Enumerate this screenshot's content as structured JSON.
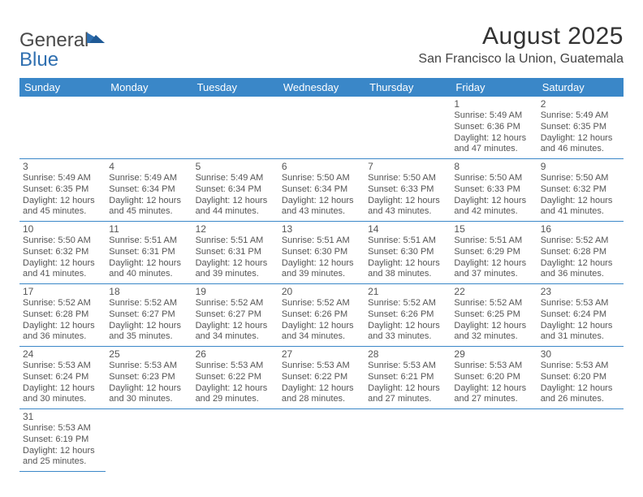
{
  "logo": {
    "text1": "General",
    "text2": "Blue"
  },
  "header": {
    "title": "August 2025",
    "location": "San Francisco la Union, Guatemala"
  },
  "colors": {
    "header_bg": "#3a87c8",
    "header_text": "#ffffff",
    "cell_border": "#3a87c8",
    "body_text": "#555555",
    "logo_accent": "#2f6fb0"
  },
  "days": [
    "Sunday",
    "Monday",
    "Tuesday",
    "Wednesday",
    "Thursday",
    "Friday",
    "Saturday"
  ],
  "weeks": [
    [
      null,
      null,
      null,
      null,
      null,
      {
        "n": "1",
        "sr": "Sunrise: 5:49 AM",
        "ss": "Sunset: 6:36 PM",
        "d1": "Daylight: 12 hours",
        "d2": "and 47 minutes."
      },
      {
        "n": "2",
        "sr": "Sunrise: 5:49 AM",
        "ss": "Sunset: 6:35 PM",
        "d1": "Daylight: 12 hours",
        "d2": "and 46 minutes."
      }
    ],
    [
      {
        "n": "3",
        "sr": "Sunrise: 5:49 AM",
        "ss": "Sunset: 6:35 PM",
        "d1": "Daylight: 12 hours",
        "d2": "and 45 minutes."
      },
      {
        "n": "4",
        "sr": "Sunrise: 5:49 AM",
        "ss": "Sunset: 6:34 PM",
        "d1": "Daylight: 12 hours",
        "d2": "and 45 minutes."
      },
      {
        "n": "5",
        "sr": "Sunrise: 5:49 AM",
        "ss": "Sunset: 6:34 PM",
        "d1": "Daylight: 12 hours",
        "d2": "and 44 minutes."
      },
      {
        "n": "6",
        "sr": "Sunrise: 5:50 AM",
        "ss": "Sunset: 6:34 PM",
        "d1": "Daylight: 12 hours",
        "d2": "and 43 minutes."
      },
      {
        "n": "7",
        "sr": "Sunrise: 5:50 AM",
        "ss": "Sunset: 6:33 PM",
        "d1": "Daylight: 12 hours",
        "d2": "and 43 minutes."
      },
      {
        "n": "8",
        "sr": "Sunrise: 5:50 AM",
        "ss": "Sunset: 6:33 PM",
        "d1": "Daylight: 12 hours",
        "d2": "and 42 minutes."
      },
      {
        "n": "9",
        "sr": "Sunrise: 5:50 AM",
        "ss": "Sunset: 6:32 PM",
        "d1": "Daylight: 12 hours",
        "d2": "and 41 minutes."
      }
    ],
    [
      {
        "n": "10",
        "sr": "Sunrise: 5:50 AM",
        "ss": "Sunset: 6:32 PM",
        "d1": "Daylight: 12 hours",
        "d2": "and 41 minutes."
      },
      {
        "n": "11",
        "sr": "Sunrise: 5:51 AM",
        "ss": "Sunset: 6:31 PM",
        "d1": "Daylight: 12 hours",
        "d2": "and 40 minutes."
      },
      {
        "n": "12",
        "sr": "Sunrise: 5:51 AM",
        "ss": "Sunset: 6:31 PM",
        "d1": "Daylight: 12 hours",
        "d2": "and 39 minutes."
      },
      {
        "n": "13",
        "sr": "Sunrise: 5:51 AM",
        "ss": "Sunset: 6:30 PM",
        "d1": "Daylight: 12 hours",
        "d2": "and 39 minutes."
      },
      {
        "n": "14",
        "sr": "Sunrise: 5:51 AM",
        "ss": "Sunset: 6:30 PM",
        "d1": "Daylight: 12 hours",
        "d2": "and 38 minutes."
      },
      {
        "n": "15",
        "sr": "Sunrise: 5:51 AM",
        "ss": "Sunset: 6:29 PM",
        "d1": "Daylight: 12 hours",
        "d2": "and 37 minutes."
      },
      {
        "n": "16",
        "sr": "Sunrise: 5:52 AM",
        "ss": "Sunset: 6:28 PM",
        "d1": "Daylight: 12 hours",
        "d2": "and 36 minutes."
      }
    ],
    [
      {
        "n": "17",
        "sr": "Sunrise: 5:52 AM",
        "ss": "Sunset: 6:28 PM",
        "d1": "Daylight: 12 hours",
        "d2": "and 36 minutes."
      },
      {
        "n": "18",
        "sr": "Sunrise: 5:52 AM",
        "ss": "Sunset: 6:27 PM",
        "d1": "Daylight: 12 hours",
        "d2": "and 35 minutes."
      },
      {
        "n": "19",
        "sr": "Sunrise: 5:52 AM",
        "ss": "Sunset: 6:27 PM",
        "d1": "Daylight: 12 hours",
        "d2": "and 34 minutes."
      },
      {
        "n": "20",
        "sr": "Sunrise: 5:52 AM",
        "ss": "Sunset: 6:26 PM",
        "d1": "Daylight: 12 hours",
        "d2": "and 34 minutes."
      },
      {
        "n": "21",
        "sr": "Sunrise: 5:52 AM",
        "ss": "Sunset: 6:26 PM",
        "d1": "Daylight: 12 hours",
        "d2": "and 33 minutes."
      },
      {
        "n": "22",
        "sr": "Sunrise: 5:52 AM",
        "ss": "Sunset: 6:25 PM",
        "d1": "Daylight: 12 hours",
        "d2": "and 32 minutes."
      },
      {
        "n": "23",
        "sr": "Sunrise: 5:53 AM",
        "ss": "Sunset: 6:24 PM",
        "d1": "Daylight: 12 hours",
        "d2": "and 31 minutes."
      }
    ],
    [
      {
        "n": "24",
        "sr": "Sunrise: 5:53 AM",
        "ss": "Sunset: 6:24 PM",
        "d1": "Daylight: 12 hours",
        "d2": "and 30 minutes."
      },
      {
        "n": "25",
        "sr": "Sunrise: 5:53 AM",
        "ss": "Sunset: 6:23 PM",
        "d1": "Daylight: 12 hours",
        "d2": "and 30 minutes."
      },
      {
        "n": "26",
        "sr": "Sunrise: 5:53 AM",
        "ss": "Sunset: 6:22 PM",
        "d1": "Daylight: 12 hours",
        "d2": "and 29 minutes."
      },
      {
        "n": "27",
        "sr": "Sunrise: 5:53 AM",
        "ss": "Sunset: 6:22 PM",
        "d1": "Daylight: 12 hours",
        "d2": "and 28 minutes."
      },
      {
        "n": "28",
        "sr": "Sunrise: 5:53 AM",
        "ss": "Sunset: 6:21 PM",
        "d1": "Daylight: 12 hours",
        "d2": "and 27 minutes."
      },
      {
        "n": "29",
        "sr": "Sunrise: 5:53 AM",
        "ss": "Sunset: 6:20 PM",
        "d1": "Daylight: 12 hours",
        "d2": "and 27 minutes."
      },
      {
        "n": "30",
        "sr": "Sunrise: 5:53 AM",
        "ss": "Sunset: 6:20 PM",
        "d1": "Daylight: 12 hours",
        "d2": "and 26 minutes."
      }
    ],
    [
      {
        "n": "31",
        "sr": "Sunrise: 5:53 AM",
        "ss": "Sunset: 6:19 PM",
        "d1": "Daylight: 12 hours",
        "d2": "and 25 minutes."
      },
      null,
      null,
      null,
      null,
      null,
      null
    ]
  ]
}
